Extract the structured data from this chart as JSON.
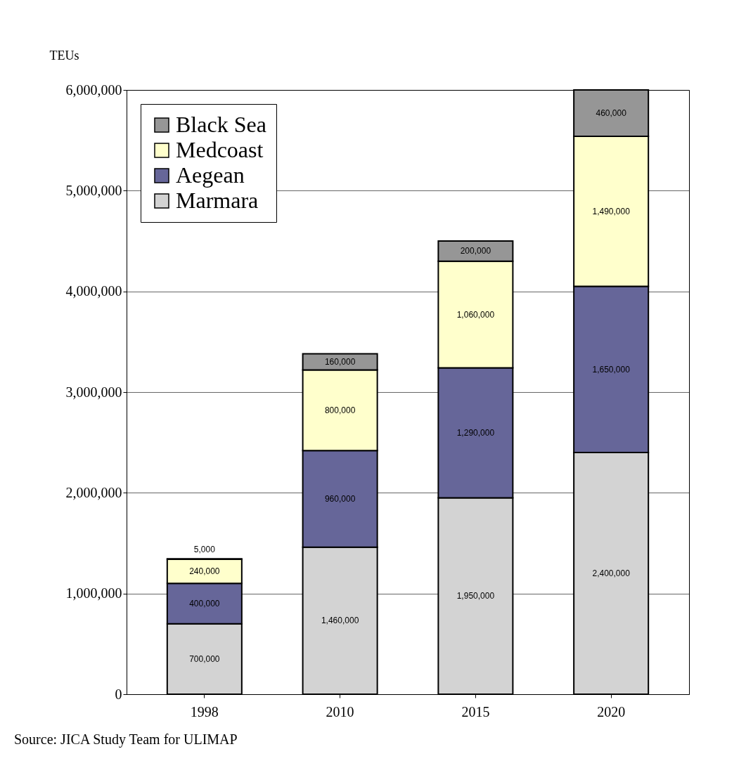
{
  "chart_data": {
    "type": "bar",
    "stacked": true,
    "ylabel": "TEUs",
    "categories": [
      "1998",
      "2010",
      "2015",
      "2020"
    ],
    "series": [
      {
        "name": "Marmara",
        "color": "#d3d3d3",
        "values": [
          700000,
          1460000,
          1950000,
          2400000
        ],
        "value_labels": [
          "700,000",
          "1,460,000",
          "1,950,000",
          "2,400,000"
        ]
      },
      {
        "name": "Aegean",
        "color": "#666699",
        "values": [
          400000,
          960000,
          1290000,
          1650000
        ],
        "value_labels": [
          "400,000",
          "960,000",
          "1,290,000",
          "1,650,000"
        ]
      },
      {
        "name": "Medcoast",
        "color": "#ffffcc",
        "values": [
          240000,
          800000,
          1060000,
          1490000
        ],
        "value_labels": [
          "240,000",
          "800,000",
          "1,060,000",
          "1,490,000"
        ]
      },
      {
        "name": "Black Sea",
        "color": "#969696",
        "values": [
          5000,
          160000,
          200000,
          460000
        ],
        "value_labels": [
          "5,000",
          "160,000",
          "200,000",
          "460,000"
        ]
      }
    ],
    "ylim": [
      0,
      6000000
    ],
    "yticks": [
      0,
      {
        "value": 1000000,
        "label": "1,000,000"
      },
      {
        "value": 2000000,
        "label": "2,000,000"
      },
      {
        "value": 3000000,
        "label": "3,000,000"
      },
      {
        "value": 4000000,
        "label": "4,000,000"
      },
      {
        "value": 5000000,
        "label": "5,000,000"
      },
      {
        "value": 6000000,
        "label": "6,000,000"
      }
    ],
    "grid": "y",
    "legend": "top left",
    "annotations": [
      "Source: JICA Study Team for ULIMAP"
    ]
  }
}
